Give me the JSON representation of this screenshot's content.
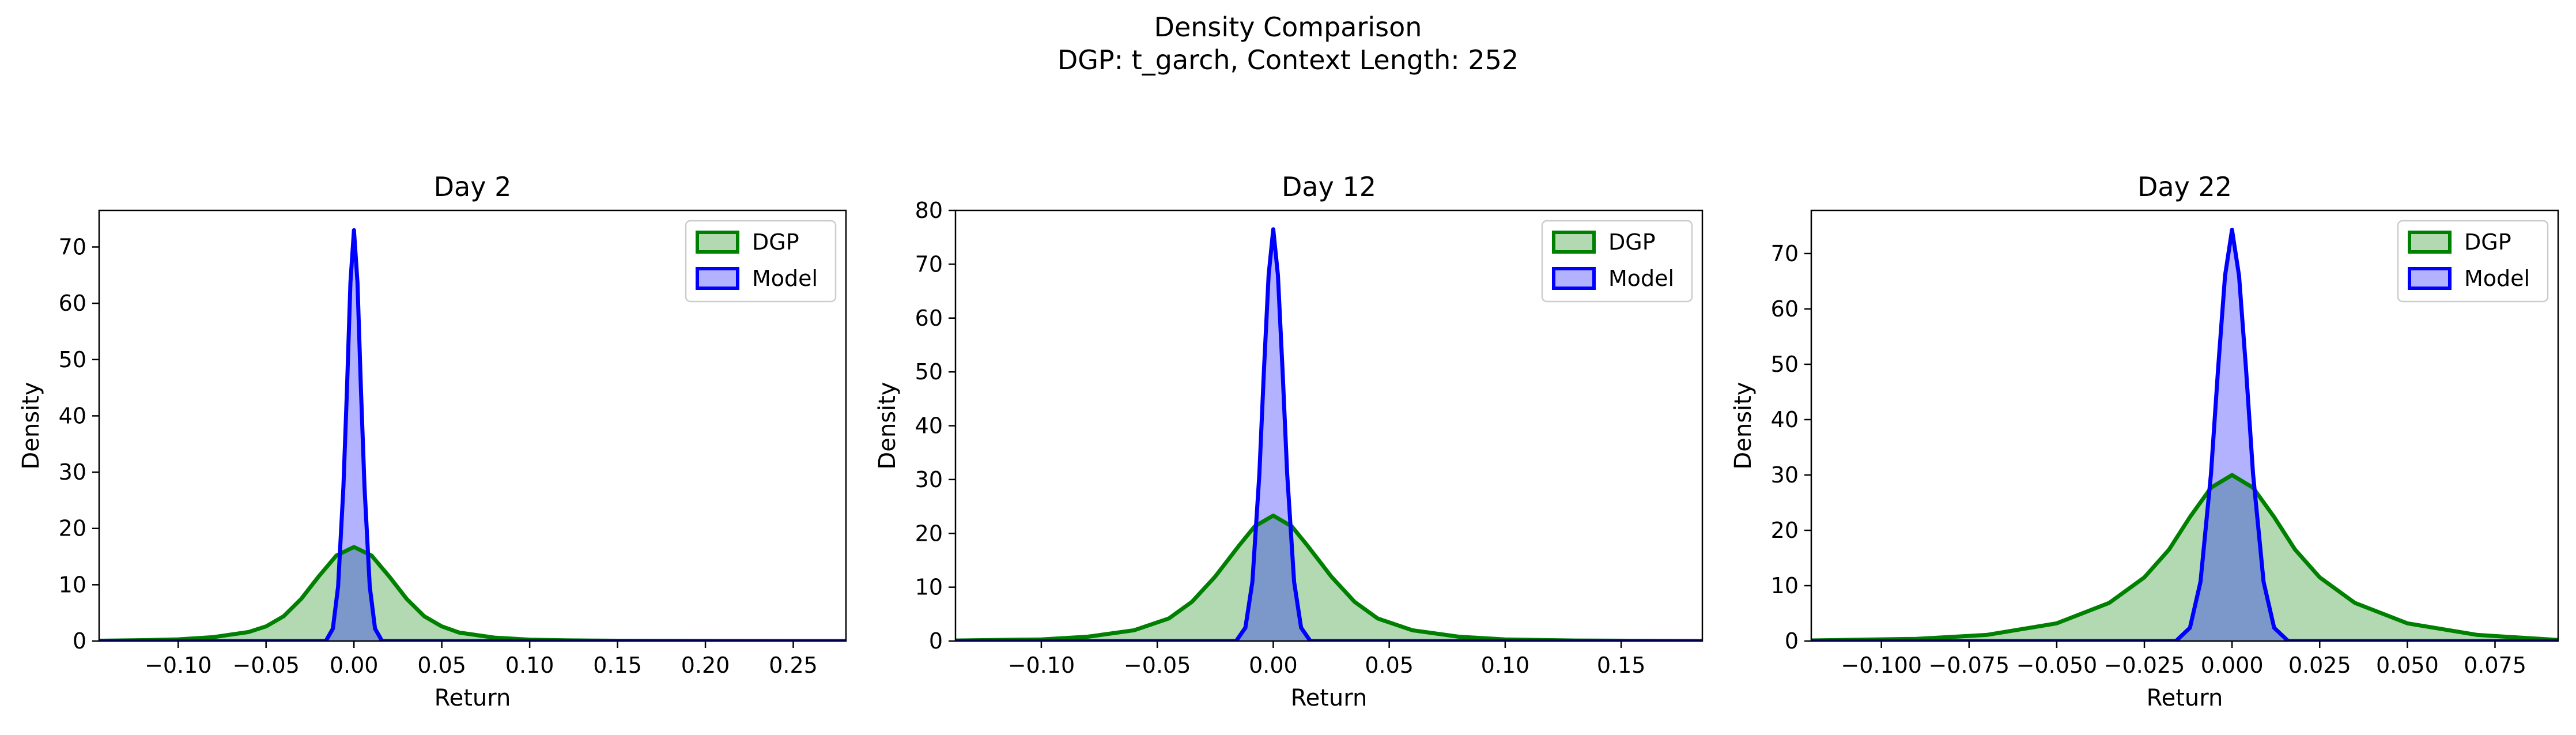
{
  "figure": {
    "title_line1": "Density Comparison",
    "title_line2": "DGP: t_garch, Context Length: 252"
  },
  "colors": {
    "dgp_line": "#008000",
    "dgp_fill": "#008000",
    "model_line": "#0000ff",
    "model_fill": "#0000ff"
  },
  "chart_data": [
    {
      "type": "area",
      "title": "Day 2",
      "xlabel": "Return",
      "ylabel": "Density",
      "xlim": [
        -0.145,
        0.28
      ],
      "ylim": [
        0,
        76.5
      ],
      "xticks": [
        -0.1,
        -0.05,
        0.0,
        0.05,
        0.1,
        0.15,
        0.2,
        0.25
      ],
      "xtick_labels": [
        "−0.10",
        "−0.05",
        "0.00",
        "0.05",
        "0.10",
        "0.15",
        "0.20",
        "0.25"
      ],
      "yticks": [
        0,
        10,
        20,
        30,
        40,
        50,
        60,
        70
      ],
      "ytick_labels": [
        "0",
        "10",
        "20",
        "30",
        "40",
        "50",
        "60",
        "70"
      ],
      "legend": "top-right",
      "grid": false,
      "series": [
        {
          "name": "DGP",
          "x": [
            -0.145,
            -0.12,
            -0.1,
            -0.08,
            -0.06,
            -0.05,
            -0.04,
            -0.03,
            -0.02,
            -0.01,
            0.0,
            0.01,
            0.02,
            0.03,
            0.04,
            0.05,
            0.06,
            0.08,
            0.1,
            0.12,
            0.15,
            0.2,
            0.28
          ],
          "values": [
            0.05,
            0.15,
            0.3,
            0.7,
            1.6,
            2.6,
            4.4,
            7.5,
            11.5,
            15.2,
            16.7,
            15.2,
            11.5,
            7.5,
            4.4,
            2.6,
            1.5,
            0.6,
            0.25,
            0.12,
            0.05,
            0.02,
            0.0
          ]
        },
        {
          "name": "Model",
          "x": [
            -0.145,
            -0.016,
            -0.012,
            -0.009,
            -0.006,
            -0.004,
            -0.002,
            0.0,
            0.002,
            0.004,
            0.006,
            0.009,
            0.012,
            0.016,
            0.28
          ],
          "values": [
            0,
            0,
            2.2,
            9.7,
            27.4,
            44.5,
            63.7,
            73.0,
            63.7,
            44.5,
            27.4,
            9.7,
            2.2,
            0,
            0
          ]
        }
      ]
    },
    {
      "type": "area",
      "title": "Day 12",
      "xlabel": "Return",
      "ylabel": "Density",
      "xlim": [
        -0.137,
        0.185
      ],
      "ylim": [
        0,
        80
      ],
      "xticks": [
        -0.1,
        -0.05,
        0.0,
        0.05,
        0.1,
        0.15
      ],
      "xtick_labels": [
        "−0.10",
        "−0.05",
        "0.00",
        "0.05",
        "0.10",
        "0.15"
      ],
      "yticks": [
        0,
        10,
        20,
        30,
        40,
        50,
        60,
        70,
        80
      ],
      "ytick_labels": [
        "0",
        "10",
        "20",
        "30",
        "40",
        "50",
        "60",
        "70",
        "80"
      ],
      "legend": "top-right",
      "grid": false,
      "series": [
        {
          "name": "DGP",
          "x": [
            -0.137,
            -0.1,
            -0.08,
            -0.06,
            -0.045,
            -0.035,
            -0.025,
            -0.015,
            -0.008,
            0.0,
            0.008,
            0.015,
            0.025,
            0.035,
            0.045,
            0.06,
            0.08,
            0.1,
            0.13,
            0.185
          ],
          "values": [
            0.1,
            0.3,
            0.8,
            2.0,
            4.2,
            7.3,
            12.0,
            17.6,
            21.3,
            23.3,
            21.3,
            17.6,
            12.0,
            7.3,
            4.2,
            2.0,
            0.8,
            0.3,
            0.1,
            0.0
          ]
        },
        {
          "name": "Model",
          "x": [
            -0.137,
            -0.016,
            -0.012,
            -0.009,
            -0.006,
            -0.004,
            -0.002,
            0.0,
            0.002,
            0.004,
            0.006,
            0.009,
            0.012,
            0.016,
            0.185
          ],
          "values": [
            0,
            0,
            2.5,
            11.0,
            31.0,
            50.4,
            68.0,
            76.5,
            68.0,
            50.4,
            31.0,
            11.0,
            2.5,
            0,
            0
          ]
        }
      ]
    },
    {
      "type": "area",
      "title": "Day 22",
      "xlabel": "Return",
      "ylabel": "Density",
      "xlim": [
        -0.12,
        0.093
      ],
      "ylim": [
        0,
        77.8
      ],
      "xticks": [
        -0.1,
        -0.075,
        -0.05,
        -0.025,
        0.0,
        0.025,
        0.05,
        0.075
      ],
      "xtick_labels": [
        "−0.100",
        "−0.075",
        "−0.050",
        "−0.025",
        "0.000",
        "0.025",
        "0.050",
        "0.075"
      ],
      "yticks": [
        0,
        10,
        20,
        30,
        40,
        50,
        60,
        70
      ],
      "ytick_labels": [
        "0",
        "10",
        "20",
        "30",
        "40",
        "50",
        "60",
        "70"
      ],
      "legend": "top-right",
      "grid": false,
      "series": [
        {
          "name": "DGP",
          "x": [
            -0.12,
            -0.09,
            -0.07,
            -0.05,
            -0.035,
            -0.025,
            -0.018,
            -0.012,
            -0.006,
            0.0,
            0.006,
            0.012,
            0.018,
            0.025,
            0.035,
            0.05,
            0.07,
            0.093
          ],
          "values": [
            0.1,
            0.4,
            1.1,
            3.2,
            6.9,
            11.5,
            16.5,
            22.4,
            27.7,
            30.0,
            27.7,
            22.4,
            16.5,
            11.5,
            6.9,
            3.2,
            1.1,
            0.2
          ]
        },
        {
          "name": "Model",
          "x": [
            -0.12,
            -0.016,
            -0.012,
            -0.009,
            -0.006,
            -0.004,
            -0.002,
            0.0,
            0.002,
            0.004,
            0.006,
            0.009,
            0.012,
            0.016,
            0.093
          ],
          "values": [
            0,
            0,
            2.4,
            10.7,
            30.2,
            49.0,
            66.0,
            74.3,
            66.0,
            49.0,
            30.2,
            10.7,
            2.4,
            0,
            0
          ]
        }
      ]
    }
  ]
}
